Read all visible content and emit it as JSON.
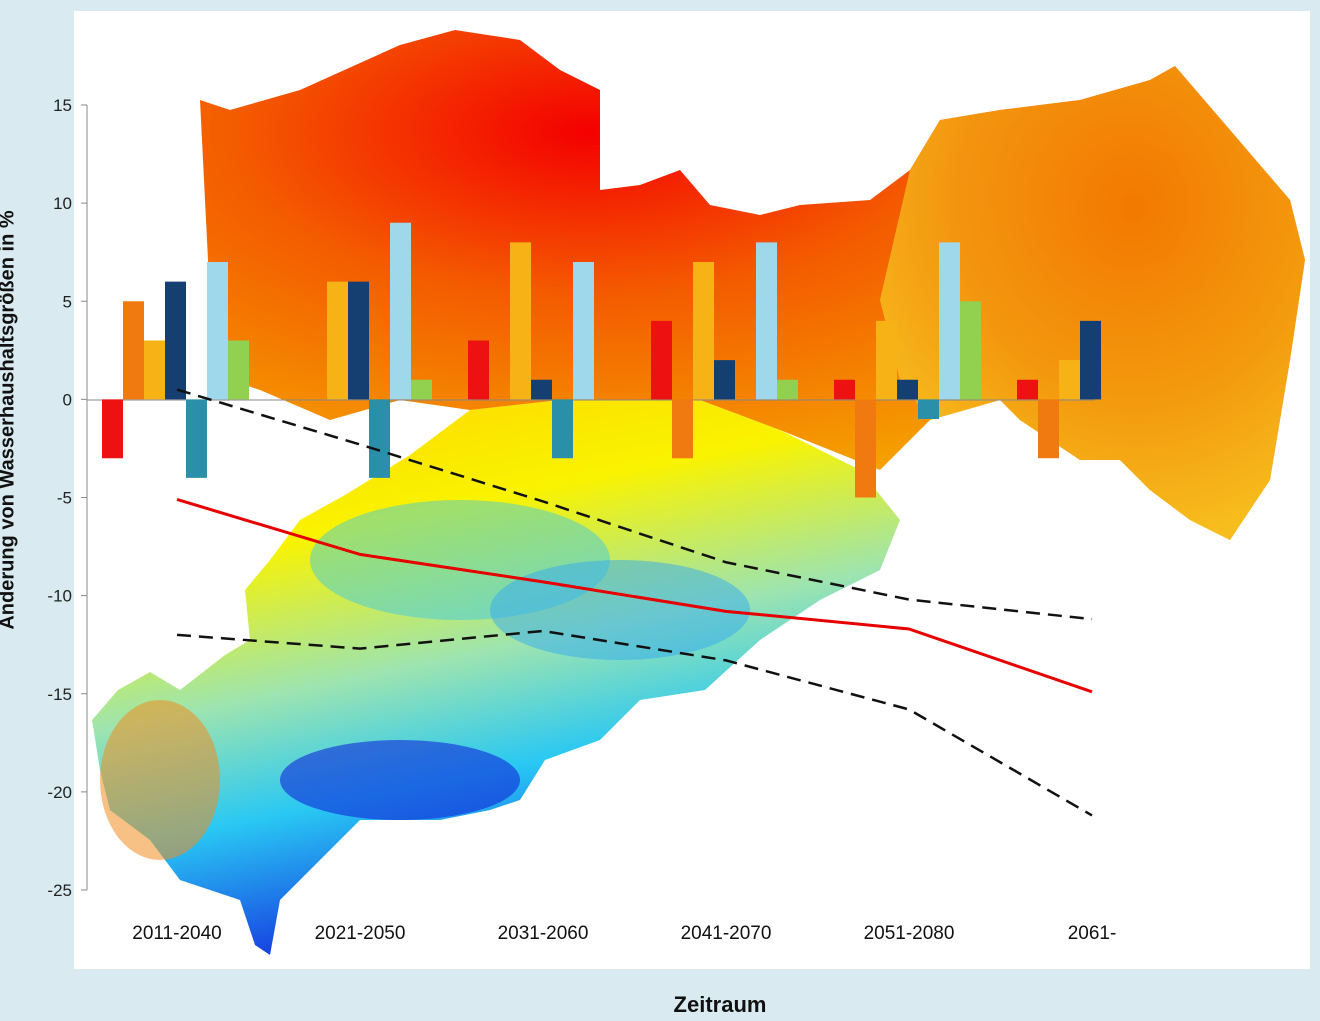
{
  "chart_data": {
    "type": "bar",
    "xlabel": "Zeitraum",
    "ylabel": "Änderung von Wasserhaushaltsgrößen in %",
    "ylim": [
      -25,
      15
    ],
    "yticks": [
      15,
      10,
      5,
      0,
      -5,
      -10,
      -15,
      -20,
      -25
    ],
    "categories": [
      "2011-2040",
      "2021-2050",
      "2031-2060",
      "2041-2070",
      "2051-2080",
      "2061-"
    ],
    "series": [
      {
        "color": "#ee1111",
        "values": [
          -3,
          0,
          3,
          4,
          1,
          1
        ]
      },
      {
        "color": "#f07a10",
        "values": [
          5,
          0,
          0,
          -3,
          -5,
          -3
        ]
      },
      {
        "color": "#f7b316",
        "values": [
          3,
          6,
          8,
          7,
          4,
          2
        ]
      },
      {
        "color": "#143f70",
        "values": [
          6,
          6,
          1,
          2,
          1,
          4
        ]
      },
      {
        "color": "#2a8fa8",
        "values": [
          -4,
          -4,
          -3,
          0,
          -1,
          0
        ]
      },
      {
        "color": "#9fd8ea",
        "values": [
          7,
          9,
          7,
          8,
          8,
          0
        ]
      },
      {
        "color": "#92d050",
        "values": [
          3,
          1,
          0,
          1,
          5,
          0
        ]
      }
    ],
    "lines": [
      {
        "style": "solid",
        "color": "#e60000",
        "values": [
          -5.1,
          -7.9,
          -9.3,
          -10.8,
          -11.7,
          -14.9
        ]
      },
      {
        "style": "dashed",
        "color": "#111111",
        "values": [
          0.5,
          -2.3,
          -5.2,
          -8.3,
          -10.2,
          -11.2
        ]
      },
      {
        "style": "dashed",
        "color": "#111111",
        "values": [
          -12.0,
          -12.7,
          -11.8,
          -13.3,
          -15.8,
          -21.2
        ]
      }
    ],
    "background_image": "map of Saxony showing change in climatic water balance, colored red-orange-yellow-cyan-blue"
  }
}
